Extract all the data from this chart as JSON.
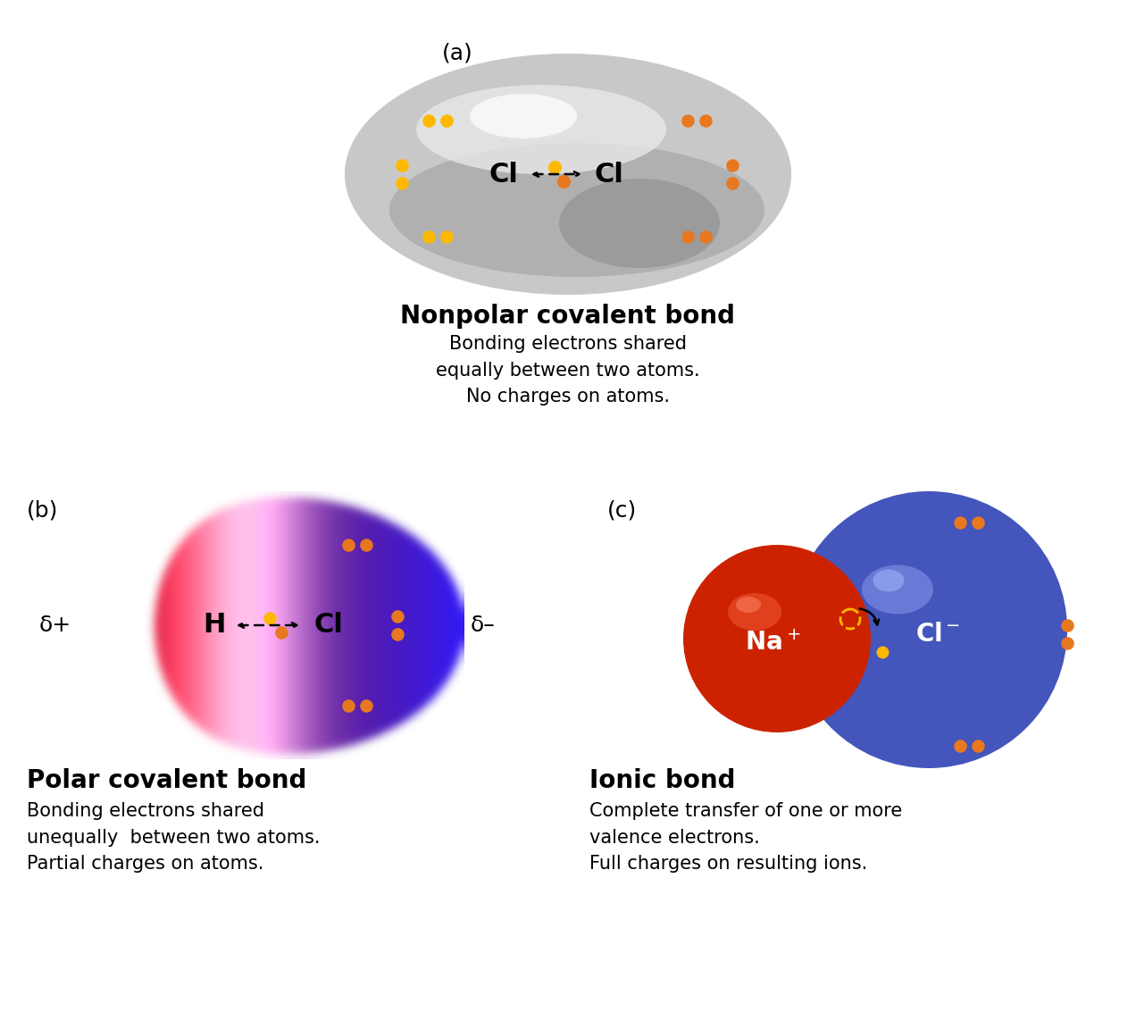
{
  "bg_color": "#ffffff",
  "title_a": "(a)",
  "title_b": "(b)",
  "title_c": "(c)",
  "label_a_title": "Nonpolar covalent bond",
  "label_a_desc": "Bonding electrons shared\nequally between two atoms.\nNo charges on atoms.",
  "label_b_title": "Polar covalent bond",
  "label_b_desc": "Bonding electrons shared\nunequally  between two atoms.\nPartial charges on atoms.",
  "label_c_title": "Ionic bond",
  "label_c_desc": "Complete transfer of one or more\nvalence electrons.\nFull charges on resulting ions.",
  "orange_color": "#E87820",
  "yellow_color": "#FFB800",
  "na_color": "#CC2200",
  "cl_color": "#4455CC",
  "gray_blob_color": "#B0B0B0"
}
